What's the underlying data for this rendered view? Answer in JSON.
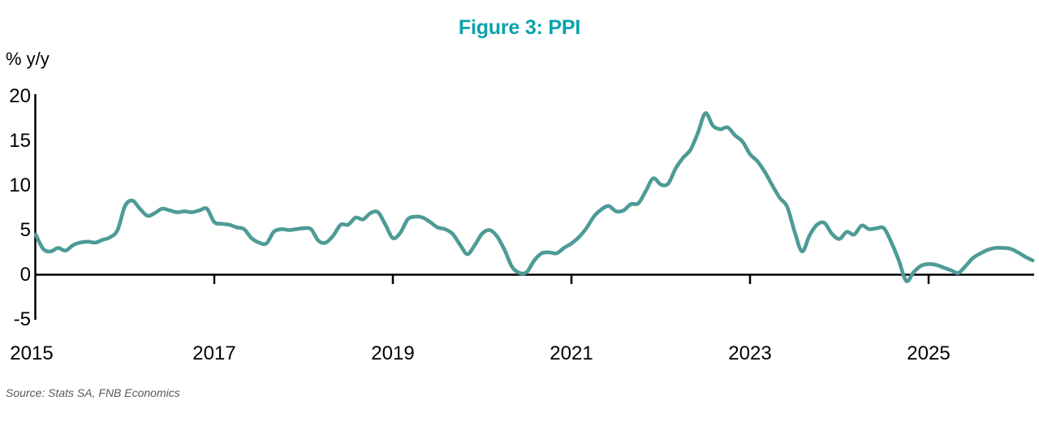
{
  "title": "Figure 3: PPI",
  "axis_unit_label": "% y/y",
  "source_note": "Source: Stats SA, FNB Economics",
  "colors": {
    "title": "#0aa2ac",
    "line": "#4d9b96",
    "axis": "#000000",
    "source_text": "#595959"
  },
  "chart_data": {
    "type": "line",
    "title": "Figure 3: PPI",
    "ylabel": "% y/y",
    "series_name": "PPI inflation, % y/y",
    "source": "Source: Stats SA, FNB Economics",
    "grid": false,
    "legend_position": "none",
    "ylim": [
      -5,
      20
    ],
    "xlim": [
      2015,
      2026.3
    ],
    "y_ticks": [
      20,
      15,
      10,
      5,
      0,
      -5
    ],
    "x_tick_years": [
      2015,
      2017,
      2019,
      2021,
      2023,
      2025
    ],
    "x_start_year": 2015.0,
    "x_step_years": 0.08333,
    "values": [
      4.5,
      2.9,
      2.6,
      3.0,
      2.7,
      3.3,
      3.6,
      3.7,
      3.6,
      3.9,
      4.2,
      5.0,
      7.7,
      8.3,
      7.4,
      6.6,
      6.9,
      7.4,
      7.2,
      7.0,
      7.1,
      7.0,
      7.2,
      7.4,
      5.9,
      5.7,
      5.6,
      5.3,
      5.1,
      4.1,
      3.6,
      3.5,
      4.8,
      5.1,
      5.0,
      5.1,
      5.2,
      5.1,
      3.8,
      3.6,
      4.4,
      5.6,
      5.6,
      6.4,
      6.2,
      6.9,
      7.0,
      5.6,
      4.1,
      4.7,
      6.2,
      6.5,
      6.4,
      5.9,
      5.3,
      5.1,
      4.6,
      3.4,
      2.3,
      3.3,
      4.6,
      5.0,
      4.3,
      2.8,
      0.9,
      0.2,
      0.3,
      1.6,
      2.4,
      2.5,
      2.4,
      3.0,
      3.5,
      4.2,
      5.2,
      6.5,
      7.3,
      7.7,
      7.1,
      7.2,
      7.9,
      8.0,
      9.4,
      10.8,
      10.1,
      10.2,
      11.9,
      13.1,
      14.0,
      15.9,
      18.1,
      16.7,
      16.3,
      16.5,
      15.6,
      14.9,
      13.5,
      12.7,
      11.5,
      10.0,
      8.6,
      7.6,
      4.8,
      2.6,
      4.4,
      5.6,
      5.8,
      4.6,
      4.0,
      4.8,
      4.5,
      5.5,
      5.1,
      5.2,
      5.2,
      3.6,
      1.6,
      -0.7,
      0.3,
      1.0,
      1.2,
      1.1,
      0.8,
      0.5,
      0.2,
      1.0,
      1.9,
      2.4,
      2.8,
      3.0,
      3.0,
      2.9,
      2.5,
      2.0,
      1.6
    ]
  }
}
